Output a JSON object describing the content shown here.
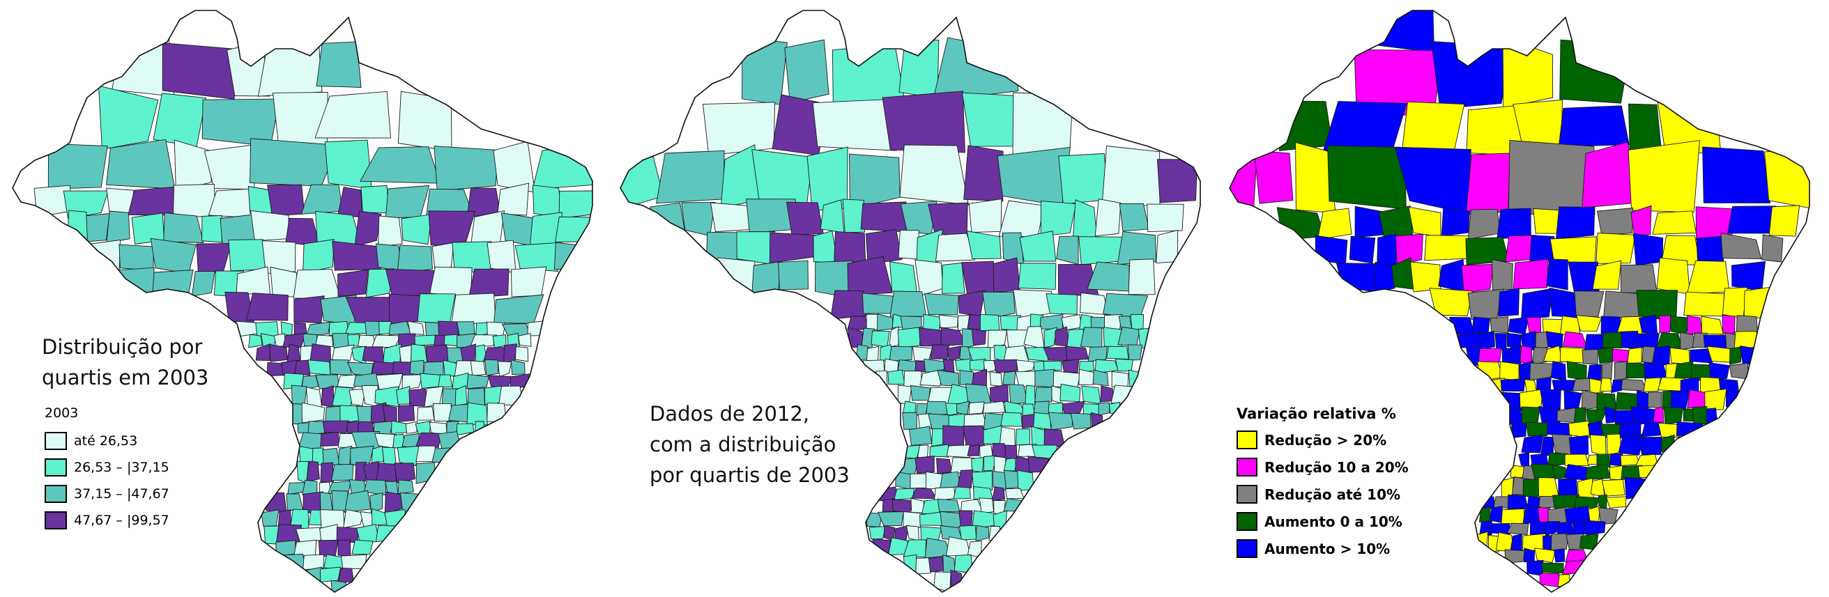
{
  "maps": [
    {
      "caption": [
        "Distribuição por",
        "quartis em 2003"
      ],
      "legend": {
        "title": "2003",
        "items": [
          {
            "label": "até 26,53",
            "color": "#dffbf6"
          },
          {
            "label": "26,53 – |37,15",
            "color": "#5ef2cf"
          },
          {
            "label": "37,15 – |47,67",
            "color": "#5ec7bd"
          },
          {
            "label": "47,67 – |99,57",
            "color": "#6a33a0"
          }
        ]
      }
    },
    {
      "caption": [
        "Dados de 2012,",
        "com a distribuição",
        "por quartis de 2003"
      ],
      "legend": null
    },
    {
      "caption": [],
      "legend": {
        "title": "Variação relativa %",
        "items": [
          {
            "label": "Redução > 20%",
            "color": "#ffff00"
          },
          {
            "label": "Redução 10 a 20%",
            "color": "#ff00ff"
          },
          {
            "label": "Redução até 10%",
            "color": "#808080"
          },
          {
            "label": "Aumento 0 a 10%",
            "color": "#006400"
          },
          {
            "label": "Aumento > 10%",
            "color": "#0000ff"
          }
        ]
      }
    }
  ]
}
